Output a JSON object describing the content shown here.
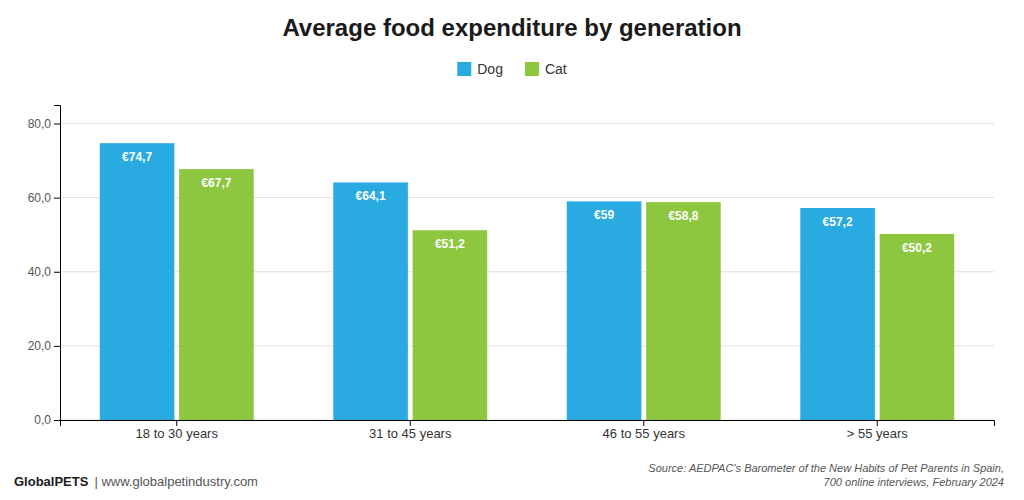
{
  "chart_data": {
    "type": "bar",
    "title": "Average food expenditure by generation",
    "categories": [
      "18 to 30 years",
      "31 to 45 years",
      "46 to 55 years",
      "> 55 years"
    ],
    "series": [
      {
        "name": "Dog",
        "color": "#29ABE2",
        "values": [
          74.7,
          64.1,
          59.0,
          57.2
        ],
        "value_labels": [
          "€74,7",
          "€64,1",
          "€59",
          "€57,2"
        ]
      },
      {
        "name": "Cat",
        "color": "#8DC63F",
        "values": [
          67.7,
          51.2,
          58.8,
          50.2
        ],
        "value_labels": [
          "€67,7",
          "€51,2",
          "€58,8",
          "€50,2"
        ]
      }
    ],
    "ylim": [
      0,
      85
    ],
    "yticks": [
      {
        "value": 0,
        "label": "0,0"
      },
      {
        "value": 20,
        "label": "20,0"
      },
      {
        "value": 40,
        "label": "40,0"
      },
      {
        "value": 60,
        "label": "60,0"
      },
      {
        "value": 80,
        "label": "80,0"
      }
    ],
    "grid": true,
    "legend": "top",
    "data_labels": true,
    "annotations": [
      "GlobalPETS",
      "| www.globalpetindustry.com",
      "Source: AEDPAC’s Barometer of the New Habits of Pet Parents in Spain,",
      "700 online interviews, February 2024"
    ]
  }
}
